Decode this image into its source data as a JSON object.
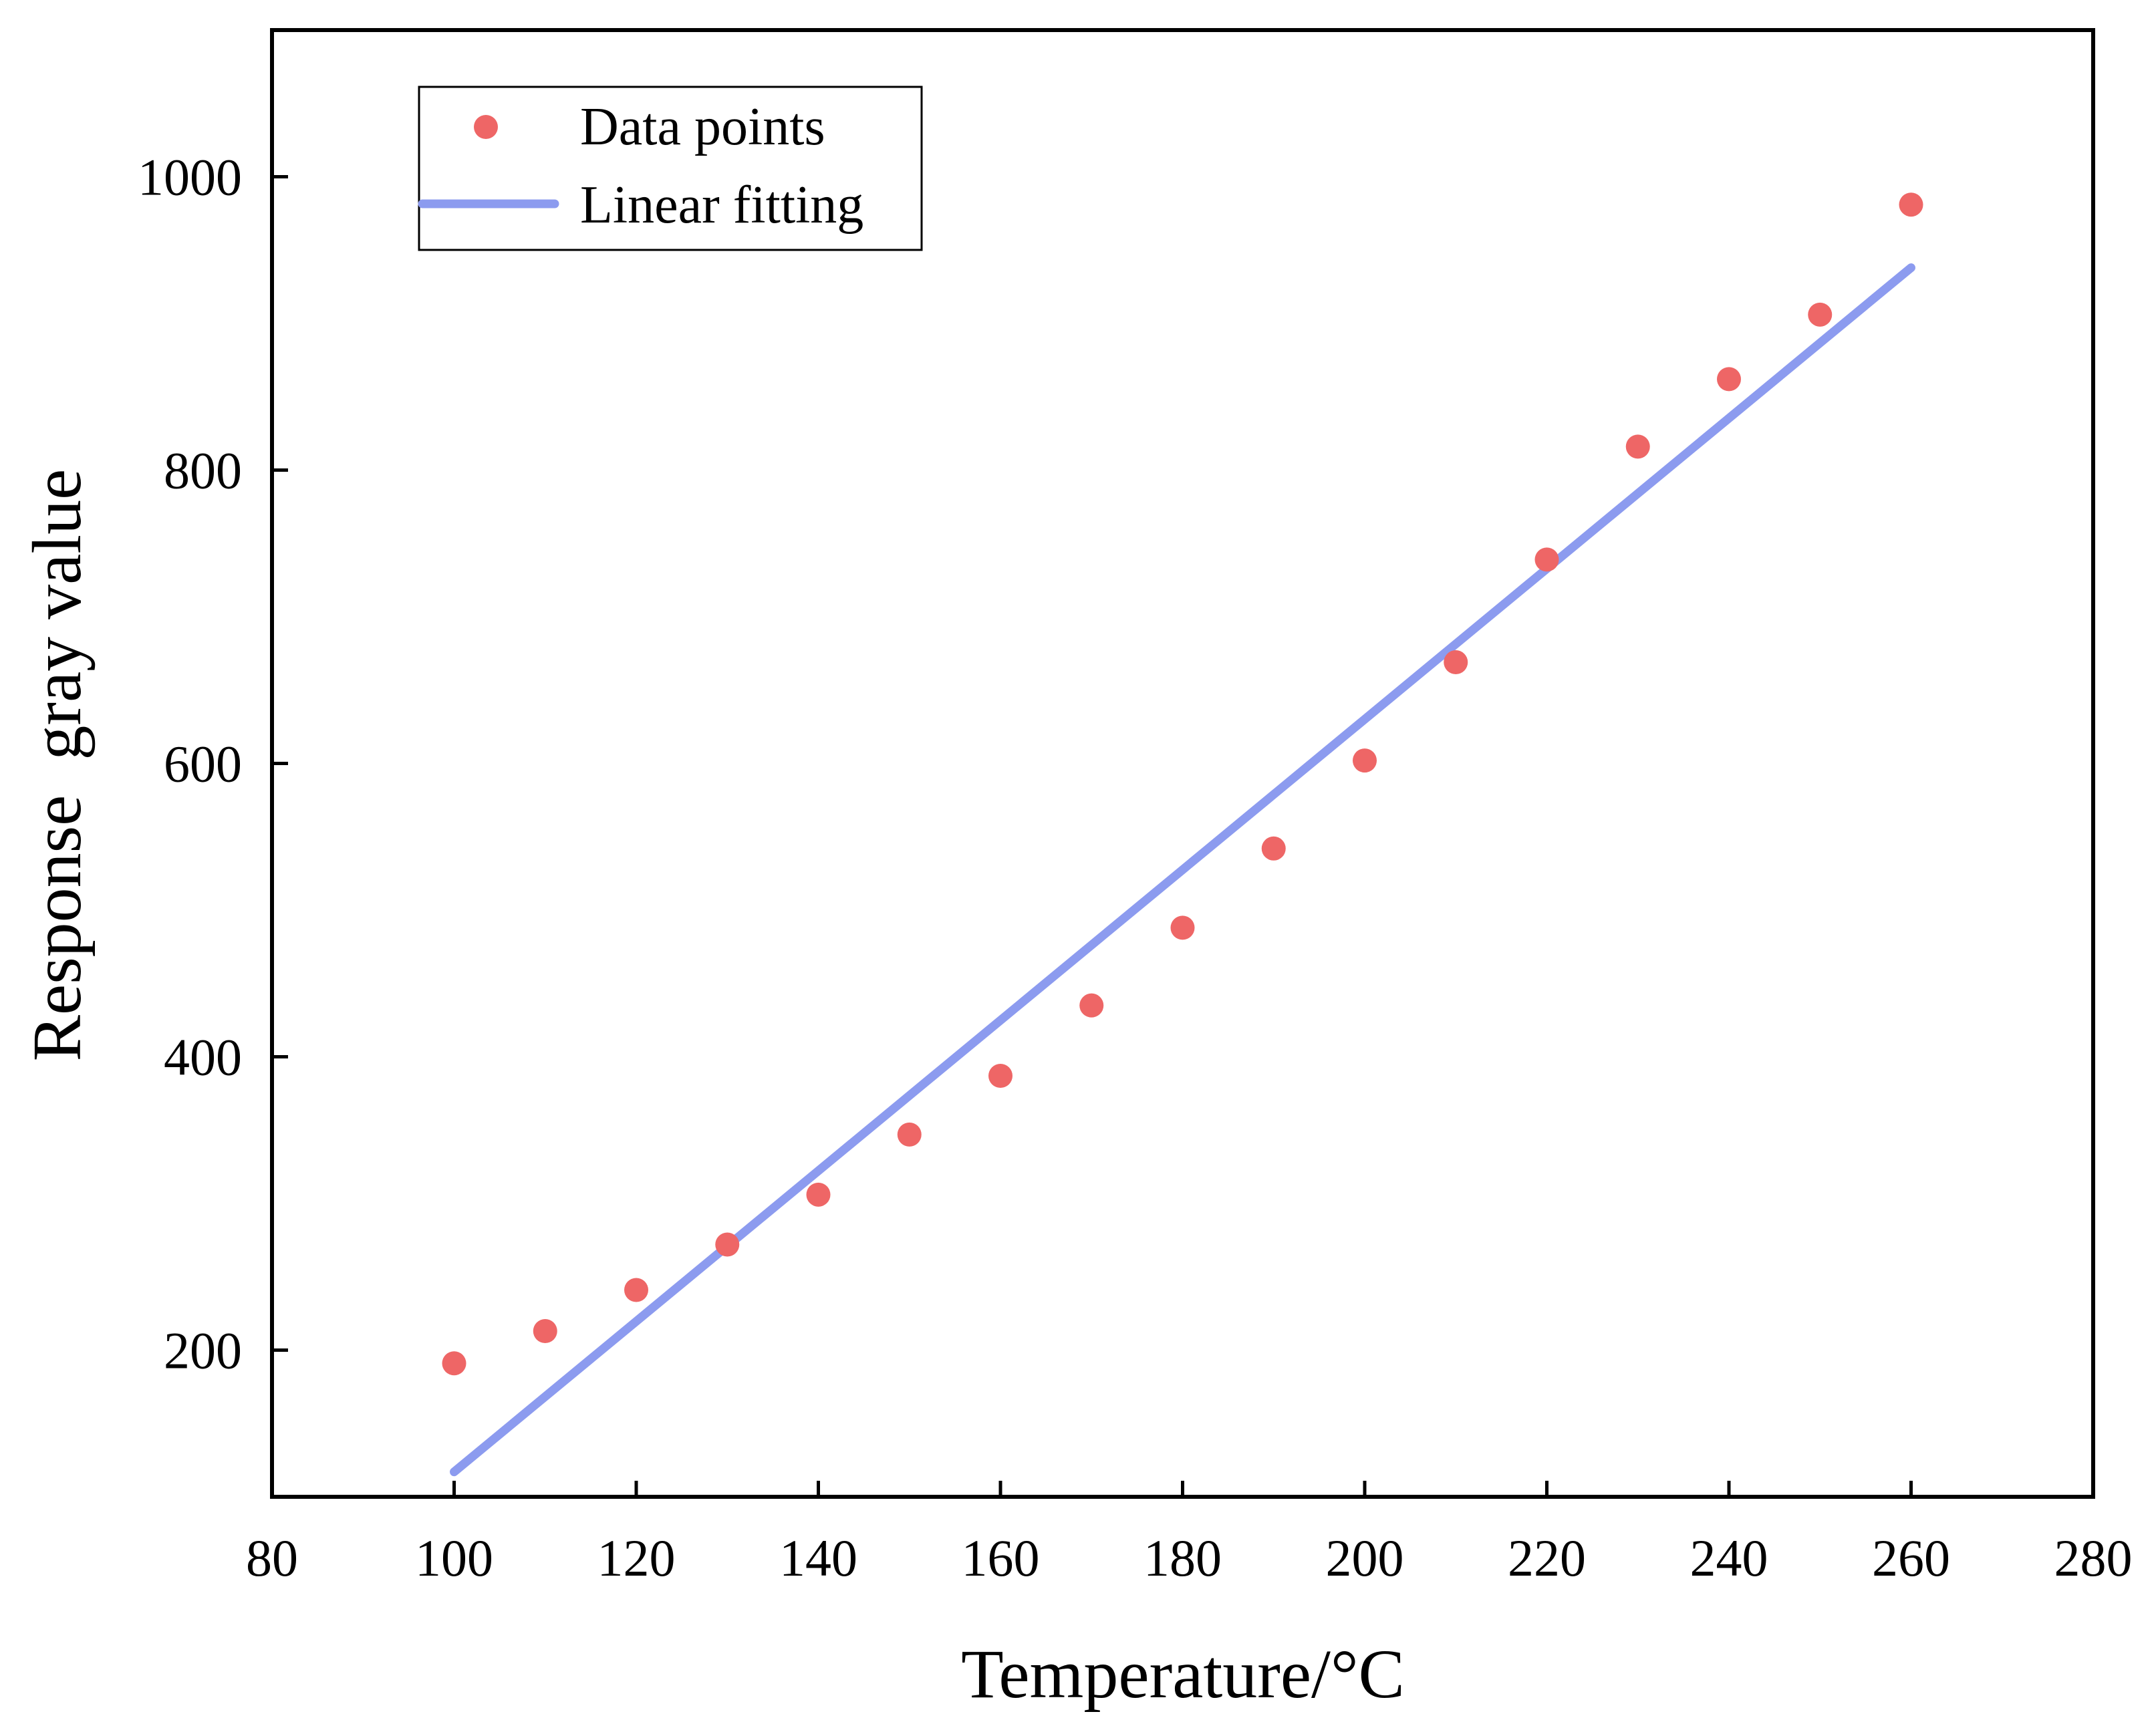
{
  "chart_data": {
    "type": "scatter",
    "title": "",
    "xlabel": "Temperature/°C",
    "ylabel": "Response  gray value",
    "xlim": [
      80,
      280
    ],
    "ylim": [
      100,
      1100
    ],
    "xticks": [
      80,
      100,
      120,
      140,
      160,
      180,
      200,
      220,
      240,
      260,
      280
    ],
    "yticks": [
      200,
      400,
      600,
      800,
      1000
    ],
    "grid": false,
    "legend_position": "top-left",
    "series": [
      {
        "name": "Data points",
        "kind": "scatter",
        "color": "#ee6666",
        "x": [
          100,
          110,
          120,
          130,
          140,
          150,
          160,
          170,
          180,
          190,
          200,
          210,
          220,
          230,
          240,
          250,
          260
        ],
        "y": [
          191,
          213,
          241,
          272,
          306,
          347,
          387,
          435,
          488,
          542,
          602,
          669,
          739,
          816,
          862,
          906,
          981
        ]
      },
      {
        "name": "Linear fitting",
        "kind": "line",
        "color": "#8c9bef",
        "x": [
          100,
          260
        ],
        "y": [
          117,
          938
        ]
      }
    ]
  }
}
